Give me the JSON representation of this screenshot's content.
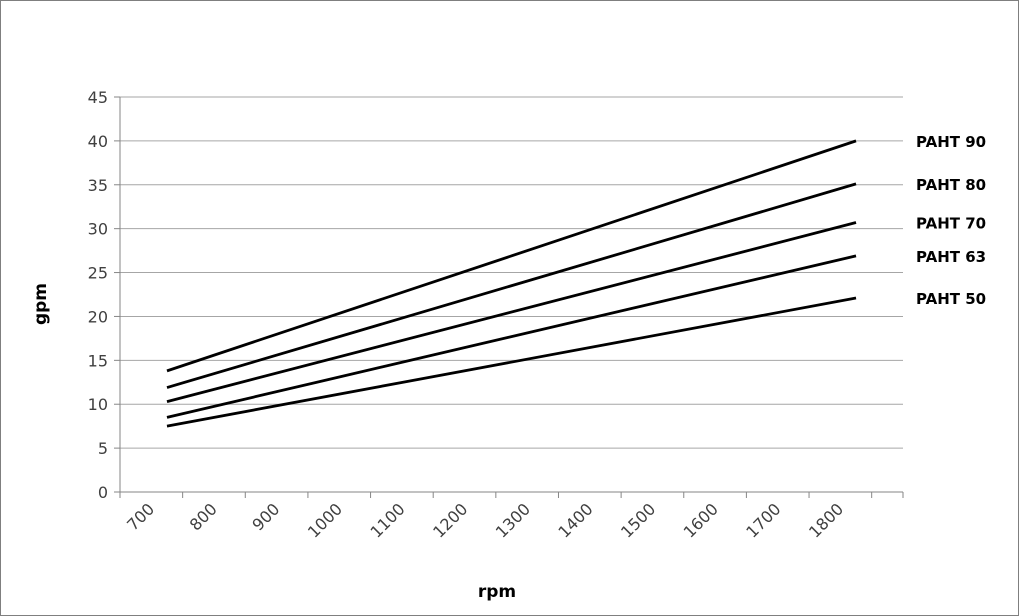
{
  "chart_data": {
    "type": "line",
    "title": "",
    "xlabel": "rpm",
    "ylabel": "gpm",
    "xlim": [
      700,
      1800
    ],
    "ylim": [
      0,
      45
    ],
    "x_ticks": [
      700,
      800,
      900,
      1000,
      1100,
      1200,
      1300,
      1400,
      1500,
      1600,
      1700,
      1800
    ],
    "y_ticks": [
      0,
      5,
      10,
      15,
      20,
      25,
      30,
      35,
      40,
      45
    ],
    "grid": "horizontal",
    "legend": "right",
    "line_color": "#000000",
    "grid_color": "#a6a6a6",
    "series": [
      {
        "name": "PAHT 90",
        "x": [
          725,
          1825
        ],
        "values": [
          13.8,
          40.0
        ]
      },
      {
        "name": "PAHT 80",
        "x": [
          725,
          1825
        ],
        "values": [
          11.9,
          35.1
        ]
      },
      {
        "name": "PAHT 70",
        "x": [
          725,
          1825
        ],
        "values": [
          10.3,
          30.7
        ]
      },
      {
        "name": "PAHT 63",
        "x": [
          725,
          1825
        ],
        "values": [
          8.5,
          26.9
        ]
      },
      {
        "name": "PAHT 50",
        "x": [
          725,
          1825
        ],
        "values": [
          7.5,
          22.1
        ]
      }
    ]
  }
}
